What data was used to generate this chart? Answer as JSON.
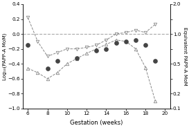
{
  "xlabel": "Gestation (weeks)",
  "ylabel_left": "Log₁₀(PAPP-A MoM)",
  "ylabel_right": "Equivalent PAPP-A MoM",
  "xlim": [
    5.5,
    20.5
  ],
  "ylim": [
    -1.0,
    0.4
  ],
  "xticks": [
    6,
    8,
    10,
    12,
    14,
    16,
    18,
    20
  ],
  "yticks_left": [
    -1.0,
    -0.8,
    -0.6,
    -0.4,
    -0.2,
    0.0,
    0.2,
    0.4
  ],
  "yticks_right_pos": [
    -1.0,
    -0.8,
    -0.6,
    -0.4,
    -0.2,
    0.0,
    0.2,
    0.4
  ],
  "yticks_right_labels": [
    "0.1",
    "0.2",
    "",
    "0.5",
    "",
    "1.0",
    "",
    "2.0"
  ],
  "hline_y": 0.0,
  "series_v_triangles": {
    "x": [
      6,
      7,
      8,
      9,
      10,
      11,
      12,
      13,
      14,
      15,
      16,
      17,
      18,
      19
    ],
    "y": [
      0.22,
      -0.1,
      -0.3,
      -0.25,
      -0.2,
      -0.2,
      -0.18,
      -0.15,
      -0.08,
      0.0,
      0.02,
      0.05,
      0.02,
      0.13
    ]
  },
  "series_up_triangles": {
    "x": [
      6,
      7,
      8,
      9,
      10,
      11,
      12,
      13,
      14,
      15,
      16,
      17,
      18,
      19
    ],
    "y": [
      -0.46,
      -0.52,
      -0.6,
      -0.52,
      -0.4,
      -0.33,
      -0.26,
      -0.2,
      -0.14,
      -0.08,
      -0.1,
      -0.2,
      -0.45,
      -0.9
    ]
  },
  "series_dots": {
    "x": [
      6,
      8,
      9,
      11,
      13,
      14,
      15,
      16,
      17,
      18,
      19
    ],
    "y": [
      -0.15,
      -0.46,
      -0.36,
      -0.32,
      -0.22,
      -0.2,
      -0.12,
      -0.1,
      -0.08,
      -0.15,
      -0.36
    ]
  },
  "color_gray": "#888888",
  "color_dark": "#444444",
  "background_color": "#ffffff"
}
